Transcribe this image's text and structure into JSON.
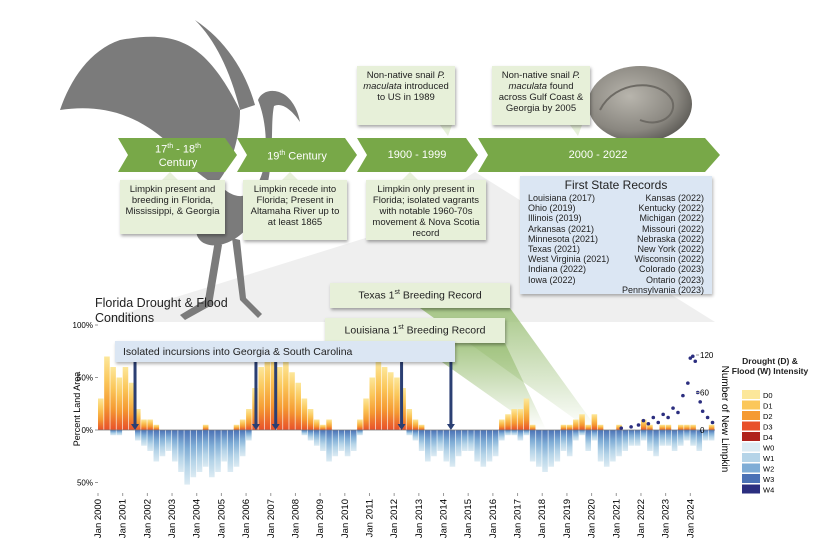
{
  "timeline": {
    "periods": [
      {
        "parts": [
          "17",
          "th",
          " - 18",
          "th",
          " Century"
        ]
      },
      {
        "parts": [
          "19",
          "th",
          " Century"
        ]
      },
      {
        "parts": [
          "1900 - 1999"
        ]
      },
      {
        "parts": [
          "2000 - 2022"
        ]
      }
    ]
  },
  "callouts_above": [
    {
      "parts": [
        "Non-native snail ",
        "P. maculata",
        " introduced to US in 1989"
      ]
    },
    {
      "parts": [
        "Non-native snail ",
        "P. maculata",
        " found across Gulf Coast & Georgia by 2005"
      ]
    }
  ],
  "callouts_below": [
    "Limpkin present and breeding in Florida,  Mississippi, & Georgia",
    "Limpkin recede into Florida; Present in Altamaha River up to at least 1865",
    "Limpkin only present in Florida; isolated vagrants with notable 1960-70s movement & Nova Scotia record"
  ],
  "state_records": {
    "title": "First State Records",
    "left": [
      "Louisiana (2017)",
      "Ohio (2019)",
      "Illinois (2019)",
      "Arkansas (2021)",
      "Minnesota (2021)",
      "Texas (2021)",
      "West Virginia (2021)",
      "Indiana (2022)",
      "Iowa (2022)"
    ],
    "right": [
      "Kansas (2022)",
      "Kentucky (2022)",
      "Michigan (2022)",
      "Missouri (2022)",
      "Nebraska (2022)",
      "New York (2022)",
      "Wisconsin (2022)",
      "Colorado (2023)",
      "Ontario (2023)",
      "Pennsylvania (2023)"
    ]
  },
  "chart_data": {
    "type": "bar",
    "title": "Florida Drought & Flood Conditions",
    "ylabel": "Percent Land Area",
    "y2label": "Number of New Limpkin",
    "annotations": {
      "texas": [
        "Texas 1",
        "st",
        " Breeding Record"
      ],
      "louisiana": [
        "Louisiana 1",
        "st",
        " Breeding Record"
      ],
      "incursions": "Isolated incursions into Georgia & South Carolina"
    },
    "texas_x": 2020.1,
    "louisiana_x": 2018.0,
    "incursion_x": [
      2001.5,
      2006.4,
      2007.2,
      2012.3,
      2014.3
    ],
    "xlim": [
      2000,
      2025
    ],
    "xticks": [
      {
        "value": 2000,
        "label": "Jan 2000"
      },
      {
        "value": 2001,
        "label": "Jan 2001"
      },
      {
        "value": 2002,
        "label": "Jan 2002"
      },
      {
        "value": 2003,
        "label": "Jan 2003"
      },
      {
        "value": 2004,
        "label": "Jan 2004"
      },
      {
        "value": 2005,
        "label": "Jan 2005"
      },
      {
        "value": 2006,
        "label": "Jan 2006"
      },
      {
        "value": 2007,
        "label": "Jan 2007"
      },
      {
        "value": 2008,
        "label": "Jan 2008"
      },
      {
        "value": 2009,
        "label": "Jan 2009"
      },
      {
        "value": 2010,
        "label": "Jan 2010"
      },
      {
        "value": 2011,
        "label": "Jan 2011"
      },
      {
        "value": 2012,
        "label": "Jan 2012"
      },
      {
        "value": 2013,
        "label": "Jan 2013"
      },
      {
        "value": 2014,
        "label": "Jan 2014"
      },
      {
        "value": 2015,
        "label": "Jan 2015"
      },
      {
        "value": 2016,
        "label": "Jan 2016"
      },
      {
        "value": 2017,
        "label": "Jan 2017"
      },
      {
        "value": 2018,
        "label": "Jan 2018"
      },
      {
        "value": 2019,
        "label": "Jan 2019"
      },
      {
        "value": 2020,
        "label": "Jan 2020"
      },
      {
        "value": 2021,
        "label": "Jan 2021"
      },
      {
        "value": 2022,
        "label": "Jan 2022"
      },
      {
        "value": 2023,
        "label": "Jan 2023"
      },
      {
        "value": 2024,
        "label": "Jan 2024"
      }
    ],
    "ylim": [
      -60,
      100
    ],
    "yticks": [
      {
        "value": 100,
        "label": "100%"
      },
      {
        "value": 50,
        "label": "50%"
      },
      {
        "value": 0,
        "label": "0%"
      },
      {
        "value": -50,
        "label": "50%"
      }
    ],
    "y2lim": [
      0,
      120
    ],
    "y2ticks": [
      0,
      60,
      120
    ],
    "x": [
      2000,
      2000.25,
      2000.5,
      2000.75,
      2001,
      2001.25,
      2001.5,
      2001.75,
      2002,
      2002.25,
      2002.5,
      2002.75,
      2003,
      2003.25,
      2003.5,
      2003.75,
      2004,
      2004.25,
      2004.5,
      2004.75,
      2005,
      2005.25,
      2005.5,
      2005.75,
      2006,
      2006.25,
      2006.5,
      2006.75,
      2007,
      2007.25,
      2007.5,
      2007.75,
      2008,
      2008.25,
      2008.5,
      2008.75,
      2009,
      2009.25,
      2009.5,
      2009.75,
      2010,
      2010.25,
      2010.5,
      2010.75,
      2011,
      2011.25,
      2011.5,
      2011.75,
      2012,
      2012.25,
      2012.5,
      2012.75,
      2013,
      2013.25,
      2013.5,
      2013.75,
      2014,
      2014.25,
      2014.5,
      2014.75,
      2015,
      2015.25,
      2015.5,
      2015.75,
      2016,
      2016.25,
      2016.5,
      2016.75,
      2017,
      2017.25,
      2017.5,
      2017.75,
      2018,
      2018.25,
      2018.5,
      2018.75,
      2019,
      2019.25,
      2019.5,
      2019.75,
      2020,
      2020.25,
      2020.5,
      2020.75,
      2021,
      2021.25,
      2021.5,
      2021.75,
      2022,
      2022.25,
      2022.5,
      2022.75,
      2023,
      2023.25,
      2023.5,
      2023.75,
      2024,
      2024.25,
      2024.5,
      2024.75
    ],
    "drought": [
      30,
      70,
      60,
      50,
      60,
      45,
      20,
      10,
      10,
      5,
      0,
      0,
      0,
      0,
      0,
      0,
      0,
      5,
      0,
      0,
      0,
      0,
      5,
      10,
      20,
      40,
      60,
      70,
      75,
      60,
      65,
      55,
      45,
      30,
      20,
      10,
      5,
      10,
      0,
      0,
      0,
      0,
      10,
      30,
      50,
      65,
      60,
      55,
      50,
      40,
      20,
      10,
      5,
      0,
      0,
      0,
      0,
      0,
      0,
      0,
      0,
      0,
      0,
      0,
      0,
      10,
      15,
      20,
      20,
      30,
      5,
      0,
      0,
      0,
      0,
      5,
      5,
      10,
      15,
      5,
      15,
      5,
      0,
      0,
      5,
      0,
      0,
      0,
      10,
      5,
      0,
      5,
      5,
      0,
      5,
      5,
      5,
      0,
      0,
      5
    ],
    "flood": [
      0,
      0,
      -5,
      -5,
      0,
      0,
      -10,
      -15,
      -20,
      -30,
      -25,
      -20,
      -30,
      -40,
      -52,
      -45,
      -40,
      -35,
      -45,
      -40,
      -30,
      -40,
      -35,
      -25,
      -10,
      0,
      0,
      0,
      0,
      0,
      0,
      0,
      0,
      -5,
      -10,
      -15,
      -20,
      -30,
      -25,
      -20,
      -25,
      -20,
      -5,
      0,
      0,
      0,
      0,
      0,
      0,
      0,
      -5,
      -10,
      -20,
      -30,
      -25,
      -20,
      -30,
      -35,
      -25,
      -20,
      -20,
      -30,
      -35,
      -30,
      -25,
      -10,
      -5,
      -5,
      -10,
      -5,
      -30,
      -35,
      -40,
      -35,
      -30,
      -20,
      -25,
      -10,
      -5,
      -20,
      -10,
      -30,
      -35,
      -30,
      -25,
      -20,
      -15,
      -15,
      -10,
      -20,
      -25,
      -15,
      -15,
      -20,
      -15,
      -10,
      -15,
      -20,
      -10,
      -10
    ],
    "limpkin": {
      "color": "#2b2e7f",
      "x": [
        2021.2,
        2021.6,
        2021.9,
        2022.1,
        2022.3,
        2022.5,
        2022.7,
        2022.9,
        2023.1,
        2023.3,
        2023.5,
        2023.7,
        2023.9,
        2024.0,
        2024.1,
        2024.2,
        2024.3,
        2024.4,
        2024.5,
        2024.7,
        2024.9
      ],
      "values": [
        3,
        5,
        8,
        15,
        10,
        20,
        12,
        25,
        20,
        35,
        28,
        55,
        75,
        115,
        118,
        110,
        60,
        45,
        30,
        20,
        12
      ]
    },
    "legend": {
      "title": "Drought (D) & Flood (W) Intensity",
      "items": [
        {
          "name": "D0",
          "color": "#fce79a"
        },
        {
          "name": "D1",
          "color": "#fbc75a"
        },
        {
          "name": "D2",
          "color": "#f59a32"
        },
        {
          "name": "D3",
          "color": "#e8502a"
        },
        {
          "name": "D4",
          "color": "#b0221c"
        },
        {
          "name": "W0",
          "color": "#dcebf3"
        },
        {
          "name": "W1",
          "color": "#b5d4e8"
        },
        {
          "name": "W2",
          "color": "#7fadd6"
        },
        {
          "name": "W3",
          "color": "#4a71b5"
        },
        {
          "name": "W4",
          "color": "#2b2e7f"
        }
      ]
    }
  }
}
